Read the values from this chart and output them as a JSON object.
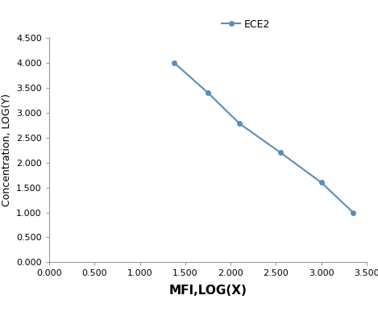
{
  "x": [
    1.38,
    1.75,
    2.1,
    2.55,
    3.0,
    3.35
  ],
  "y": [
    4.0,
    3.4,
    2.78,
    2.2,
    1.6,
    1.0
  ],
  "line_color": "#5B8DB8",
  "marker_color": "#5B8DB8",
  "marker_style": "o",
  "marker_size": 4,
  "line_width": 1.5,
  "legend_label": "ECE2",
  "xlabel": "MFI,LOG(X)",
  "ylabel": "Concentration, LOG(Y)",
  "xlim": [
    0.0,
    3.5
  ],
  "ylim": [
    0.0,
    4.5
  ],
  "xticks": [
    0.0,
    0.5,
    1.0,
    1.5,
    2.0,
    2.5,
    3.0,
    3.5
  ],
  "yticks": [
    0.0,
    0.5,
    1.0,
    1.5,
    2.0,
    2.5,
    3.0,
    3.5,
    4.0,
    4.5
  ],
  "background_color": "#ffffff",
  "xlabel_fontsize": 11,
  "ylabel_fontsize": 9,
  "tick_fontsize": 8,
  "legend_fontsize": 9
}
